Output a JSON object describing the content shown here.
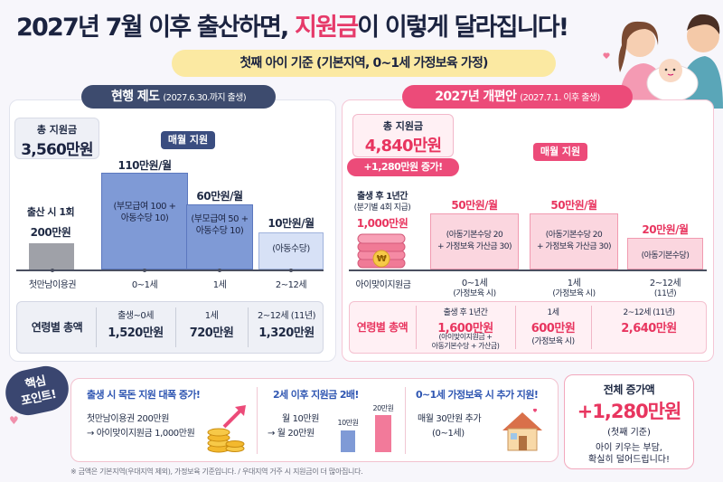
{
  "title": {
    "part1": "2027년 7월 이후 출산하면, ",
    "highlight": "지원금",
    "part2": "이 이렇게 달라집니다!"
  },
  "subtitle": "첫째 아이 기준 (기본지역, 0~1세 가정보육 가정)",
  "current": {
    "tab": "현행 제도",
    "tab_note": "(2027.6.30.까지 출생)",
    "total_label": "총 지원금",
    "total_value": "3,560만원",
    "monthly_label": "매월 지원",
    "birth_label": "출산 시 1회",
    "birth_value": "200만원",
    "birth_axis": "첫만남이용권",
    "bars": [
      {
        "value": "110만원/월",
        "detail": "(부모급여 100 +\n아동수당 10)",
        "axis": "0~1세"
      },
      {
        "value": "60만원/월",
        "detail": "(부모급여 50 +\n아동수당 10)",
        "axis": "1세"
      },
      {
        "value": "10만원/월",
        "detail": "(아동수당)",
        "axis": "2~12세"
      }
    ],
    "summary_label": "연령별 총액",
    "summary": [
      {
        "period": "출생~0세",
        "amount": "1,520만원"
      },
      {
        "period": "1세",
        "amount": "720만원"
      },
      {
        "period": "2~12세 (11년)",
        "amount": "1,320만원"
      }
    ]
  },
  "revised": {
    "tab": "2027년 개편안",
    "tab_note": "(2027.7.1. 이후 출생)",
    "total_label": "총 지원금",
    "total_value": "4,840만원",
    "increase_badge": "+1,280만원 증가!",
    "monthly_label": "매월 지원",
    "first_year_label": "출생 후 1년간",
    "first_year_note": "(분기별 4회 지급)",
    "first_year_value": "1,000만원",
    "coin_symbol": "₩",
    "first_axis": "아이맞이지원금",
    "bars": [
      {
        "value": "50만원/월",
        "detail": "(아동기본수당 20\n+ 가정보육 가산금 30)",
        "axis": "0~1세",
        "axis_note": "(가정보육 시)"
      },
      {
        "value": "50만원/월",
        "detail": "(아동기본수당 20\n+ 가정보육 가산금 30)",
        "axis": "1세",
        "axis_note": "(가정보육 시)"
      },
      {
        "value": "20만원/월",
        "detail": "(아동기본수당)",
        "axis": "2~12세",
        "axis_note": "(11년)"
      }
    ],
    "summary_label": "연령별 총액",
    "summary": [
      {
        "period": "출생 후 1년간",
        "amount": "1,600만원",
        "note": "(아이맞이지원금 +\n아동기본수당 + 가산금)"
      },
      {
        "period": "1세",
        "amount": "600만원",
        "note": "(가정보육 시)"
      },
      {
        "period": "2~12세 (11년)",
        "amount": "2,640만원",
        "note": ""
      }
    ]
  },
  "key_points": {
    "badge": "핵심\n포인트!",
    "items": [
      {
        "heading": "출생 시 목돈 지원 대폭 증가!",
        "line1": "첫만남이용권 200만원",
        "line2": "→ 아이맞이지원금 1,000만원"
      },
      {
        "heading": "2세 이후 지원금 2배!",
        "line1": "월 10만원",
        "line2": "→ 월 20만원",
        "bar_small": "10만원",
        "bar_big": "20만원"
      },
      {
        "heading": "0~1세 가정보육 시 추가 지원!",
        "line1": "매월 30만원 추가",
        "line2": "(0~1세)"
      }
    ]
  },
  "total_increase": {
    "heading": "전체 증가액",
    "value": "+1,280만원",
    "note": "(첫째 기준)",
    "quote": "아이 키우는 부담,\n확실히 덜어드립니다!"
  },
  "footnote": "※ 금액은 기본지역(우대지역 제외), 가정보육 기준입니다. / 우대지역 거주 시 지원금이 더 많아집니다.",
  "colors": {
    "navy": "#3d4b6e",
    "pink": "#ec4b79",
    "blue_bar": "#7f9ad6",
    "light_blue_bar": "#d7e1f6",
    "pink_bar": "#fbd6df",
    "yellow": "#fbe9a2"
  }
}
